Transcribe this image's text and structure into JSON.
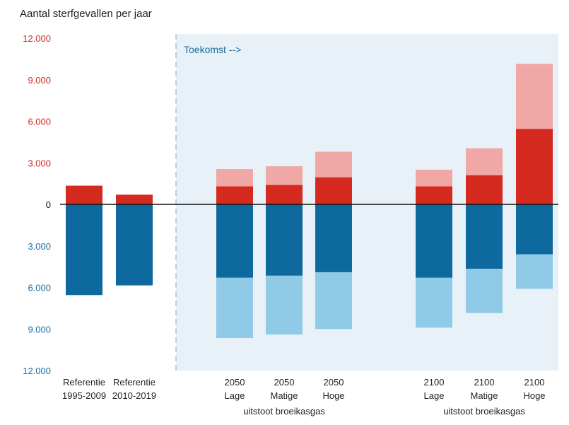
{
  "chart_data": {
    "type": "bar",
    "title": "Aantal sterfgevallen per jaar",
    "future_label": "Toekomst -->",
    "ylim": [
      -12000,
      12000
    ],
    "y_ticks": [
      {
        "value": 12000,
        "label": "12.000",
        "kind": "pos"
      },
      {
        "value": 9000,
        "label": "9.000",
        "kind": "pos"
      },
      {
        "value": 6000,
        "label": "6.000",
        "kind": "pos"
      },
      {
        "value": 3000,
        "label": "3.000",
        "kind": "pos"
      },
      {
        "value": 0,
        "label": "0",
        "kind": "zero"
      },
      {
        "value": -3000,
        "label": "3.000",
        "kind": "neg"
      },
      {
        "value": -6000,
        "label": "6.000",
        "kind": "neg"
      },
      {
        "value": -9000,
        "label": "9.000",
        "kind": "neg"
      },
      {
        "value": -12000,
        "label": "12.000",
        "kind": "neg"
      }
    ],
    "colors": {
      "pos_dark": "#d42a20",
      "pos_light": "#f0a8a6",
      "neg_dark": "#0e6a9e",
      "neg_light": "#8fcae6",
      "pos_axis": "#cc2a1e",
      "neg_axis": "#1a6ea0",
      "future_bg": "#e8f1f8",
      "future_text": "#1a6ea0",
      "divider": "#a9c1d4"
    },
    "categories": [
      {
        "id": "ref-1995-2009",
        "lines": [
          "Referentie",
          "1995-2009"
        ],
        "pos_dark": 1350,
        "pos_light": 0,
        "neg_dark": 6550,
        "neg_light": 0
      },
      {
        "id": "ref-2010-2019",
        "lines": [
          "Referentie",
          "2010-2019"
        ],
        "pos_dark": 700,
        "pos_light": 0,
        "neg_dark": 5850,
        "neg_light": 0
      },
      {
        "id": "2050-lage",
        "lines": [
          "2050",
          "Lage"
        ],
        "pos_dark": 1300,
        "pos_light": 1250,
        "neg_dark": 5300,
        "neg_light": 4350
      },
      {
        "id": "2050-matige",
        "lines": [
          "2050",
          "Matige"
        ],
        "pos_dark": 1400,
        "pos_light": 1350,
        "neg_dark": 5150,
        "neg_light": 4250
      },
      {
        "id": "2050-hoge",
        "lines": [
          "2050",
          "Hoge"
        ],
        "pos_dark": 1950,
        "pos_light": 1850,
        "neg_dark": 4900,
        "neg_light": 4100
      },
      {
        "id": "2100-lage",
        "lines": [
          "2100",
          "Lage"
        ],
        "pos_dark": 1300,
        "pos_light": 1200,
        "neg_dark": 5300,
        "neg_light": 3600
      },
      {
        "id": "2100-matige",
        "lines": [
          "2100",
          "Matige"
        ],
        "pos_dark": 2100,
        "pos_light": 1950,
        "neg_dark": 4650,
        "neg_light": 3200
      },
      {
        "id": "2100-hoge",
        "lines": [
          "2100",
          "Hoge"
        ],
        "pos_dark": 5450,
        "pos_light": 4700,
        "neg_dark": 3600,
        "neg_light": 2500
      }
    ],
    "group_labels": [
      {
        "id": "group-2050",
        "text": "uitstoot broeikasgas"
      },
      {
        "id": "group-2100",
        "text": "uitstoot broeikasgas"
      }
    ]
  }
}
